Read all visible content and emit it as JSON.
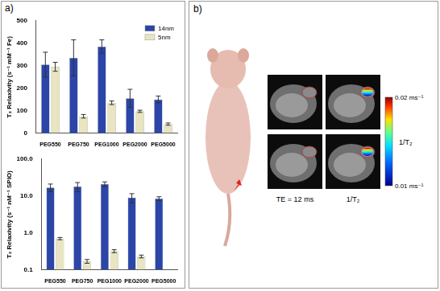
{
  "panel_a": {
    "label": "a)"
  },
  "chart_data": [
    {
      "type": "bar",
      "y_label": "T₂ Relaxivity (s⁻¹ mM⁻¹ Fe)",
      "categories": [
        "PEG550",
        "PEG750",
        "PEG1000",
        "PEG2000",
        "PEG5000"
      ],
      "series": [
        {
          "name": "14nm",
          "color": "#2b45a8",
          "values": [
            305,
            335,
            385,
            155,
            150
          ],
          "errors": [
            55,
            80,
            30,
            40,
            15
          ]
        },
        {
          "name": "5nm",
          "color": "#e9e5c1",
          "values": [
            295,
            75,
            135,
            97,
            40
          ],
          "errors": [
            20,
            8,
            8,
            5,
            5
          ]
        }
      ],
      "ylim": [
        0,
        500
      ],
      "yticks": [
        0,
        100,
        200,
        300,
        400,
        500
      ],
      "grid": false,
      "legend": "upper right"
    },
    {
      "type": "bar",
      "y_label": "T₂ Relaxivity (s⁻¹ nM⁻¹ SPIO)",
      "categories": [
        "PEG550",
        "PEG750",
        "PEG1000",
        "PEG2000",
        "PEG5000"
      ],
      "series": [
        {
          "color": "#2b45a8",
          "values": [
            17,
            18,
            21,
            9,
            8.5
          ],
          "errors": [
            4,
            5,
            3,
            2.5,
            1
          ]
        },
        {
          "color": "#e9e5c1",
          "values": [
            0.7,
            0.17,
            0.32,
            0.23,
            null
          ],
          "errors": [
            0.05,
            0.02,
            0.03,
            0.02,
            null
          ]
        }
      ],
      "log": "y",
      "ylim": [
        0.1,
        100
      ],
      "yticks": [
        0.1,
        {
          "value": 1,
          "label": "1.0"
        },
        {
          "value": 10,
          "label": "10.0"
        },
        {
          "value": 100,
          "label": "100.0"
        }
      ],
      "grid": false
    }
  ],
  "panel_b": {
    "label": "b)",
    "image_caption": "TE = 12 ms",
    "map_caption": "1/T₂",
    "colorbar": {
      "label": "1/T₂",
      "range": [
        0.01,
        0.02
      ],
      "ticks": [
        {
          "value": 0.02,
          "label": "0.02 ms⁻¹"
        },
        {
          "value": 0.01,
          "label": "0.01 ms⁻¹"
        }
      ]
    }
  }
}
